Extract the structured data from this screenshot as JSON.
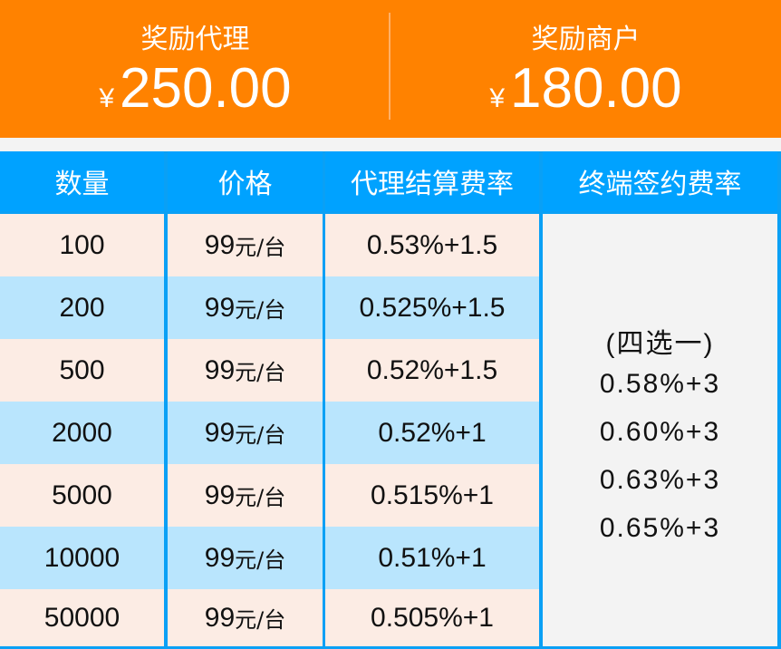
{
  "rewards": [
    {
      "label": "奖励代理",
      "currency": "¥",
      "amount": "250.00"
    },
    {
      "label": "奖励商户",
      "currency": "¥",
      "amount": "180.00"
    }
  ],
  "table": {
    "headers": [
      "数量",
      "价格",
      "代理结算费率",
      "终端签约费率"
    ],
    "rows": [
      {
        "qty": "100",
        "price": "99",
        "unit": "元/台",
        "rate": "0.53%+1.5"
      },
      {
        "qty": "200",
        "price": "99",
        "unit": "元/台",
        "rate": "0.525%+1.5"
      },
      {
        "qty": "500",
        "price": "99",
        "unit": "元/台",
        "rate": "0.52%+1.5"
      },
      {
        "qty": "2000",
        "price": "99",
        "unit": "元/台",
        "rate": "0.52%+1"
      },
      {
        "qty": "5000",
        "price": "99",
        "unit": "元/台",
        "rate": "0.515%+1"
      },
      {
        "qty": "10000",
        "price": "99",
        "unit": "元/台",
        "rate": "0.51%+1"
      },
      {
        "qty": "50000",
        "price": "99",
        "unit": "元/台",
        "rate": "0.505%+1"
      }
    ],
    "terminal": {
      "note": "(四选一)",
      "options": [
        "0.58%+3",
        "0.60%+3",
        "0.63%+3",
        "0.65%+3"
      ]
    }
  },
  "colors": {
    "orange": "#ff8200",
    "header_blue": "#00a2ff",
    "border_blue": "#0aa0f5",
    "row_peach": "#fcece4",
    "row_blue": "#b9e5fd"
  }
}
